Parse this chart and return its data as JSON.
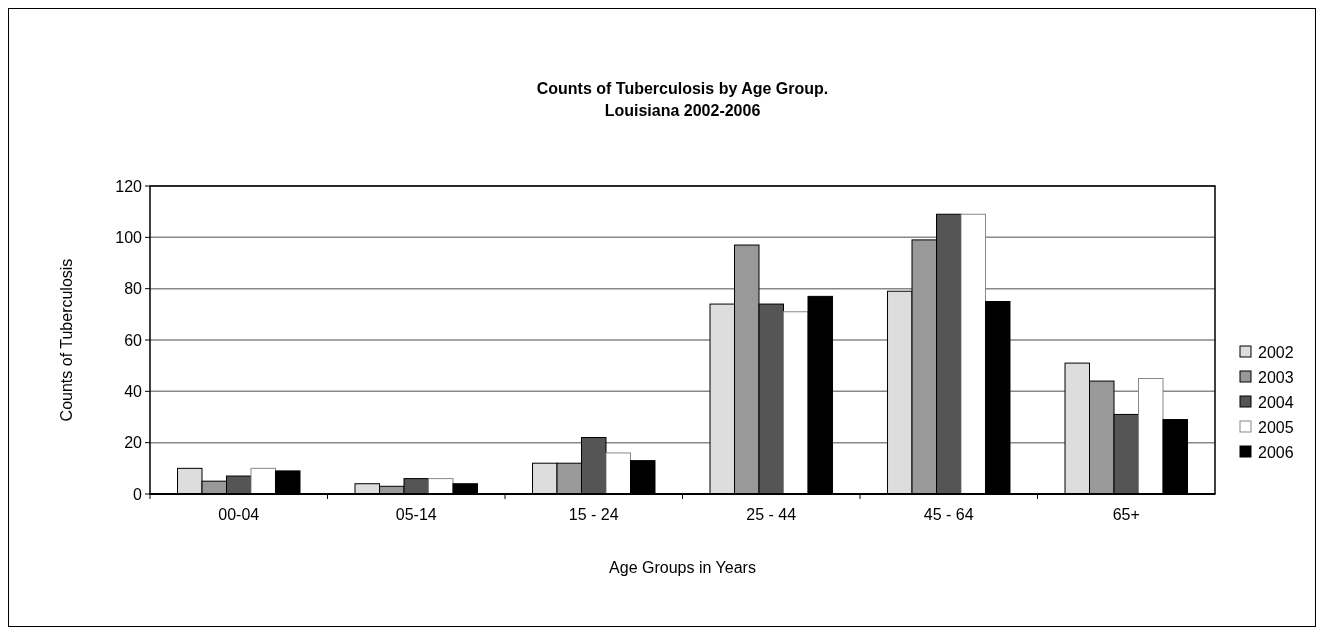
{
  "chart_data": {
    "type": "bar",
    "title": "Counts of Tuberculosis by Age Group.\nLouisiana 2002-2006",
    "xlabel": "Age Groups in Years",
    "ylabel": "Counts of Tuberculosis",
    "categories": [
      "00-04",
      "05-14",
      "15 - 24",
      "25 - 44",
      "45 - 64",
      "65+"
    ],
    "series": [
      {
        "name": "2002",
        "color": "#dddddd",
        "values": [
          10,
          4,
          12,
          74,
          79,
          51
        ]
      },
      {
        "name": "2003",
        "color": "#999999",
        "values": [
          5,
          3,
          12,
          97,
          99,
          44
        ]
      },
      {
        "name": "2004",
        "color": "#555555",
        "values": [
          7,
          6,
          22,
          74,
          109,
          31
        ]
      },
      {
        "name": "2005",
        "color": "#ffffff",
        "values": [
          10,
          6,
          16,
          71,
          109,
          45
        ]
      },
      {
        "name": "2006",
        "color": "#000000",
        "values": [
          9,
          4,
          13,
          77,
          75,
          29
        ]
      }
    ],
    "ylim": [
      0,
      120
    ],
    "yticks": [
      0,
      20,
      40,
      60,
      80,
      100,
      120
    ],
    "grid": "y",
    "legend": "right"
  }
}
